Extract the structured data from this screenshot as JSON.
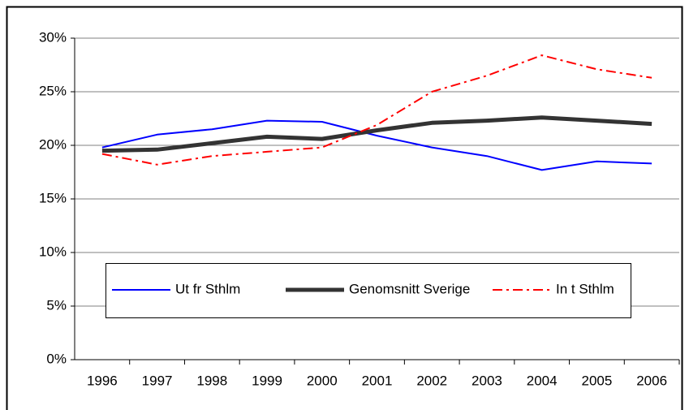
{
  "chart_data": {
    "type": "line",
    "categories": [
      "1996",
      "1997",
      "1998",
      "1999",
      "2000",
      "2001",
      "2002",
      "2003",
      "2004",
      "2005",
      "2006"
    ],
    "series": [
      {
        "name": "Ut fr Sthlm",
        "color": "#0000ff",
        "values": [
          19.8,
          21.0,
          21.5,
          22.3,
          22.2,
          20.9,
          19.8,
          19.0,
          17.7,
          18.5,
          18.3
        ]
      },
      {
        "name": "Genomsnitt Sverige",
        "color": "#333333",
        "values": [
          19.5,
          19.6,
          20.2,
          20.8,
          20.6,
          21.4,
          22.1,
          22.3,
          22.6,
          22.3,
          22.0
        ]
      },
      {
        "name": "In t Sthlm",
        "color": "#ff0000",
        "values": [
          19.2,
          18.2,
          19.0,
          19.4,
          19.8,
          21.9,
          25.0,
          26.5,
          28.4,
          27.1,
          26.3
        ]
      }
    ],
    "ylim": [
      0,
      30
    ],
    "yticks": [
      {
        "value": 0,
        "label": "0%"
      },
      {
        "value": 5,
        "label": "5%"
      },
      {
        "value": 10,
        "label": "10%"
      },
      {
        "value": 15,
        "label": "15%"
      },
      {
        "value": 20,
        "label": "20%"
      },
      {
        "value": 25,
        "label": "25%"
      },
      {
        "value": 30,
        "label": "30%"
      }
    ],
    "grid": true
  }
}
